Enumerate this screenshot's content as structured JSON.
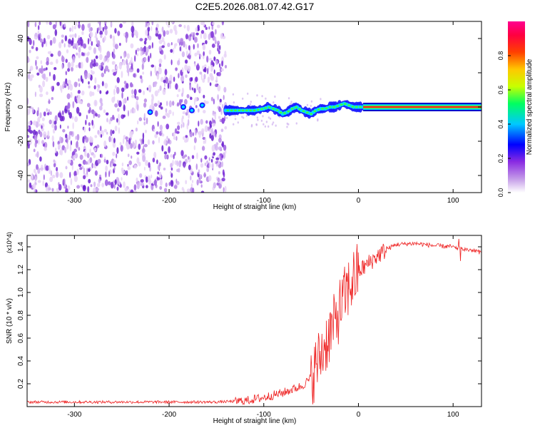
{
  "title": "C2E5.2026.081.07.42.G17",
  "chart_data": [
    {
      "type": "heatmap",
      "panel": "spectrogram",
      "xlabel": "Height of straight line (km)",
      "ylabel": "Frequency (Hz)",
      "xlim": [
        -350,
        130
      ],
      "ylim": [
        -50,
        50
      ],
      "xticks": [
        -300,
        -200,
        -100,
        0,
        100
      ],
      "yticks": [
        -40,
        -20,
        0,
        20,
        40
      ],
      "colorbar": {
        "label": "Normalized spectral amplitude",
        "range": [
          0,
          1
        ],
        "ticks": [
          "0.0",
          "0.2",
          "0.4",
          "0.6",
          "0.8"
        ],
        "colors": [
          "#ffffff",
          "#8a2be2",
          "#0000ff",
          "#00ffff",
          "#00ff00",
          "#ffff00",
          "#ff8000",
          "#ff0000",
          "#ff0080"
        ]
      },
      "noise_region": {
        "x": [
          -350,
          -140
        ],
        "level": "low (0.0-0.2)"
      },
      "ridge": {
        "x": [
          -220,
          -185,
          -175,
          -165,
          -140,
          -130,
          -120,
          -110,
          -100,
          -95,
          -90,
          -85,
          -80,
          -75,
          -70,
          -65,
          -60,
          -55,
          -50,
          -45,
          -40,
          -35,
          -30,
          -25,
          -20,
          -15,
          -10,
          -5,
          0,
          5,
          130
        ],
        "y": [
          -3,
          0,
          -2,
          1,
          -2,
          -2,
          -2,
          -2,
          -1,
          0,
          -1,
          -2,
          -4,
          -3,
          -1,
          0,
          -2,
          -3,
          -4,
          -2,
          -1,
          -1,
          0,
          0,
          1,
          2,
          1,
          0,
          0,
          0,
          0
        ]
      }
    },
    {
      "type": "line",
      "panel": "snr",
      "xlabel": "Height of straight line (km)",
      "ylabel": "SNR (10 * v/v)",
      "y_multiplier": "(x10^4)",
      "xlim": [
        -350,
        130
      ],
      "ylim": [
        0,
        1.5
      ],
      "xticks": [
        -300,
        -200,
        -100,
        0,
        100
      ],
      "yticks": [
        0.2,
        0.4,
        0.6,
        0.8,
        1.0,
        1.2,
        1.4
      ],
      "series": [
        {
          "color": "#ee2222",
          "x": [
            -350,
            -300,
            -250,
            -200,
            -150,
            -120,
            -100,
            -80,
            -60,
            -50,
            -45,
            -40,
            -35,
            -30,
            -25,
            -20,
            -15,
            -10,
            -5,
            0,
            10,
            20,
            30,
            40,
            60,
            80,
            100,
            110,
            120,
            130
          ],
          "y": [
            0.04,
            0.04,
            0.04,
            0.04,
            0.04,
            0.05,
            0.08,
            0.12,
            0.18,
            0.25,
            0.35,
            0.45,
            0.55,
            0.65,
            0.72,
            0.85,
            0.95,
            1.05,
            1.12,
            1.18,
            1.25,
            1.32,
            1.38,
            1.42,
            1.43,
            1.41,
            1.4,
            1.38,
            1.37,
            1.35
          ]
        }
      ]
    }
  ]
}
